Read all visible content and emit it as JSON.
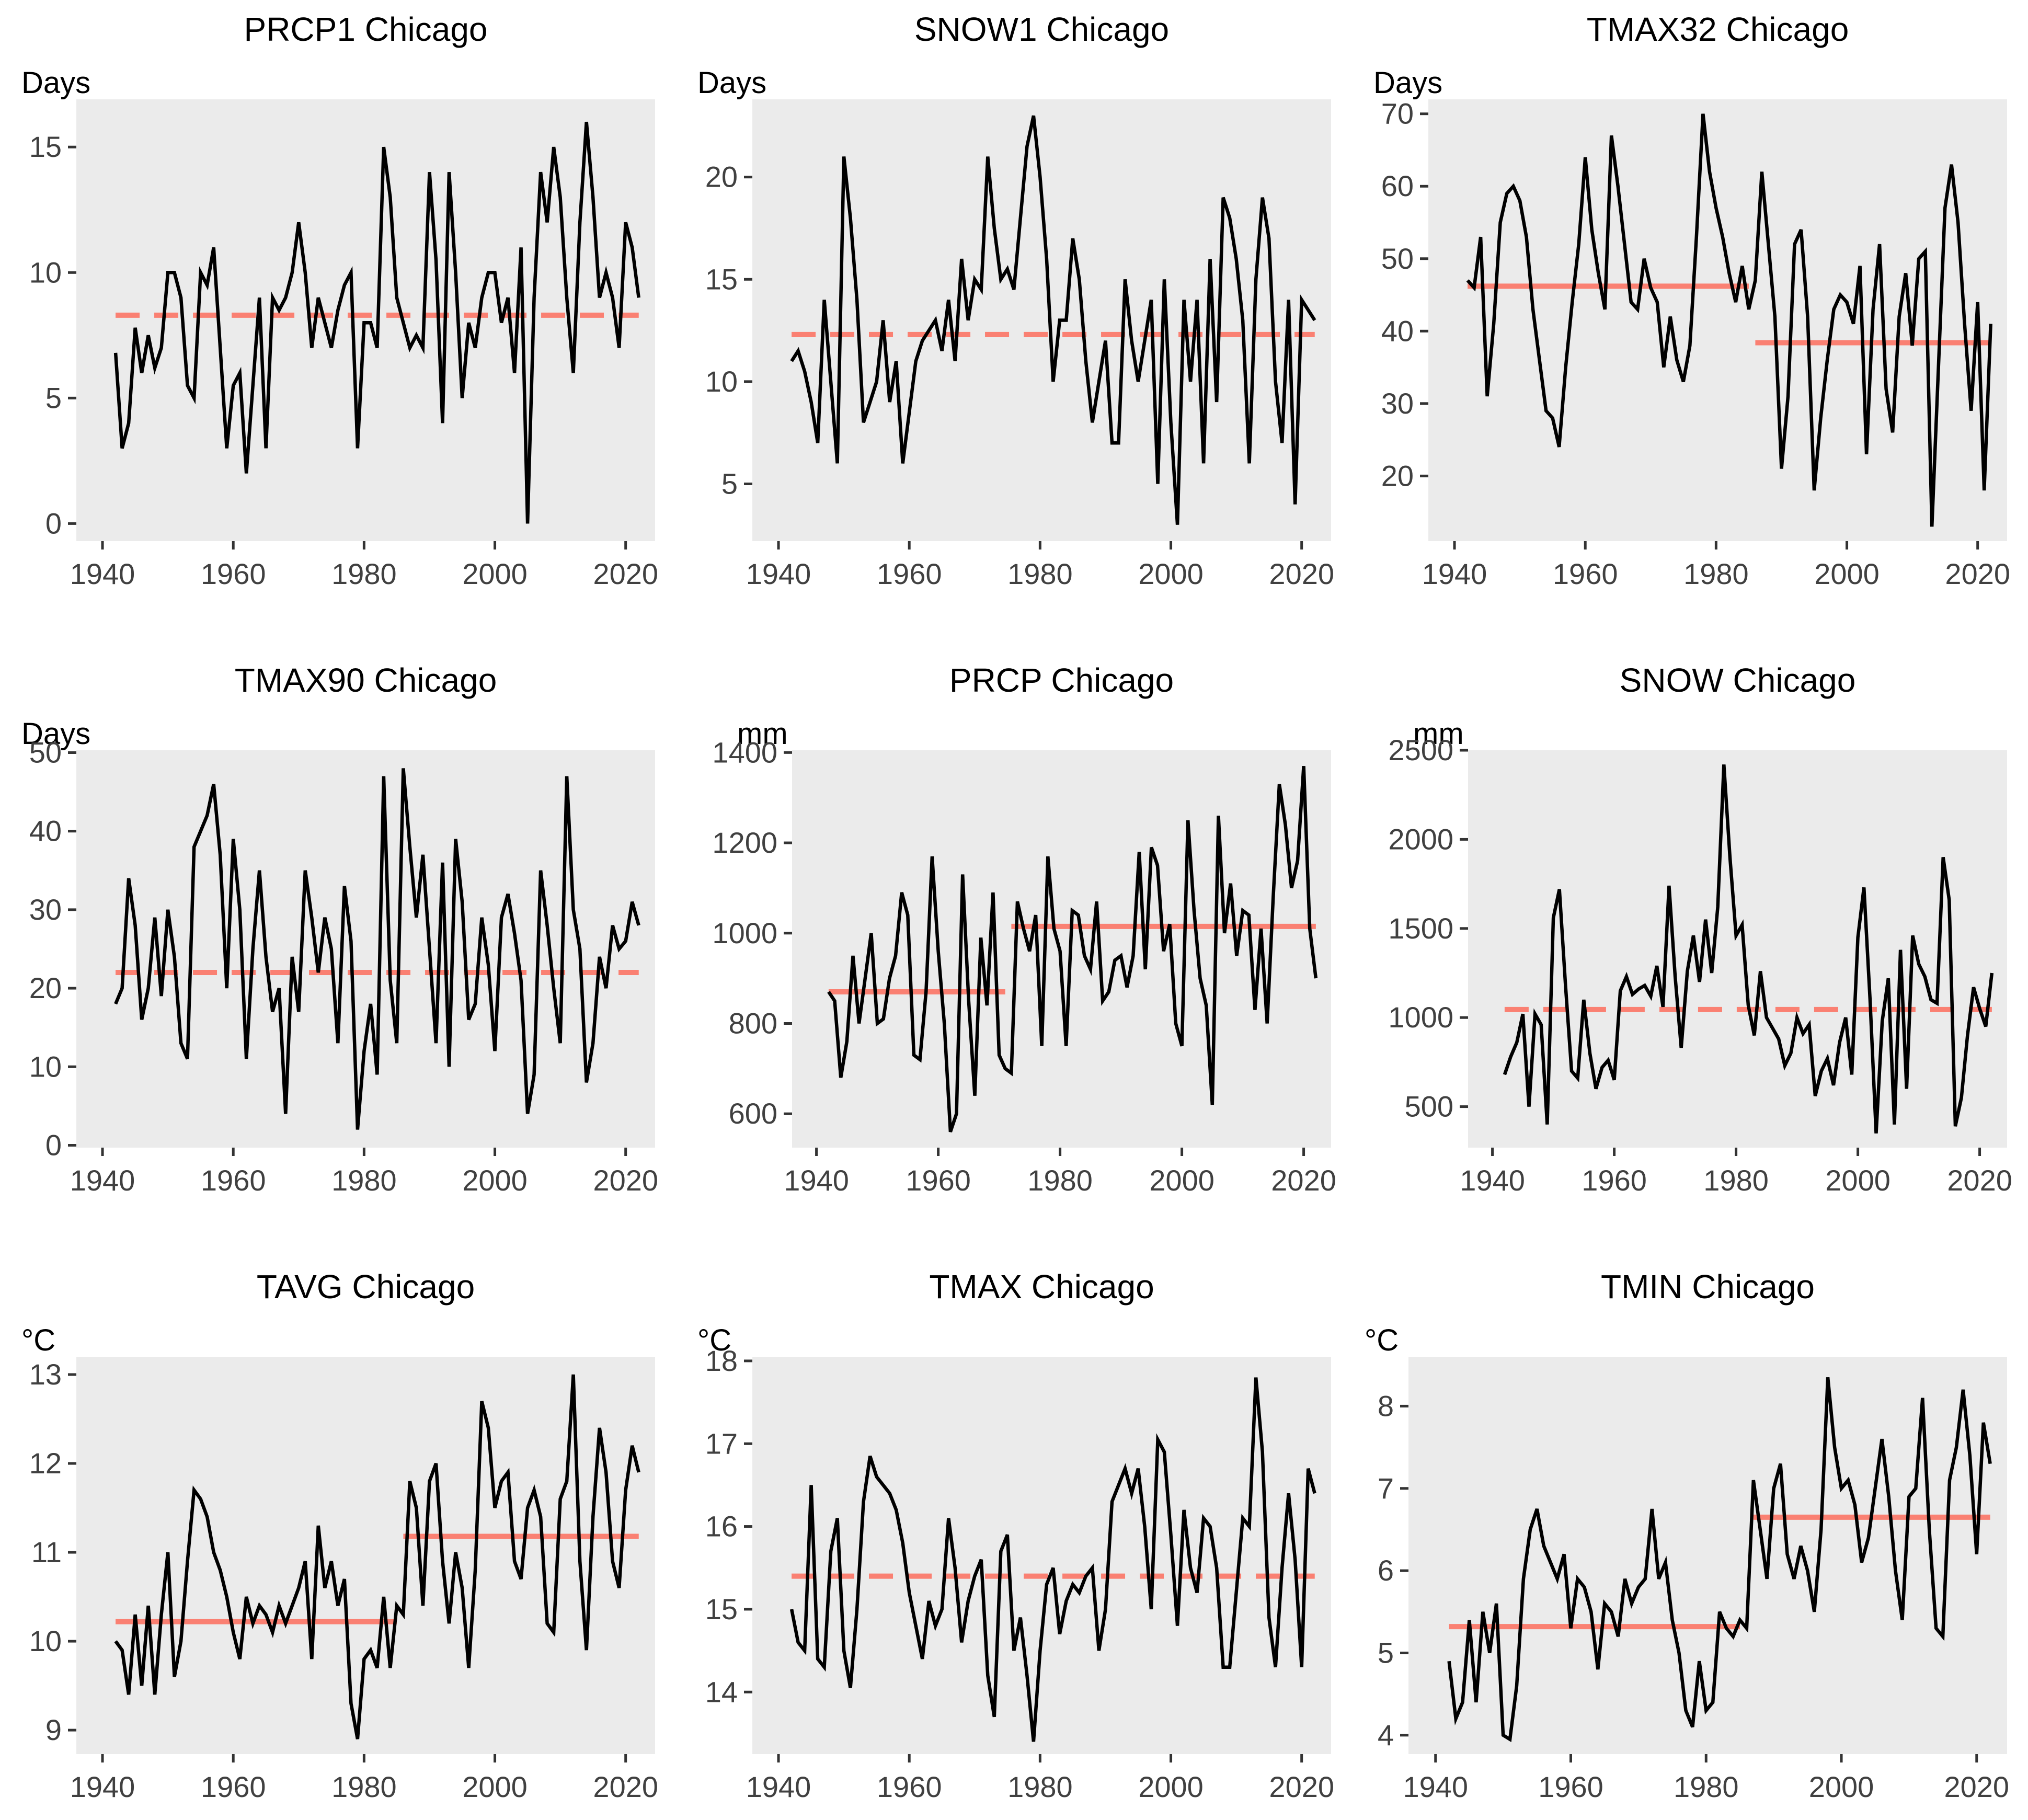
{
  "page": {
    "background": "#ffffff"
  },
  "styles": {
    "panel_bg": "#EBEBEB",
    "series_color": "#000000",
    "mean_line_color": "#FA8072",
    "tick_text_color": "#404040",
    "title_color": "#000000",
    "axis_tick_color": "#333333"
  },
  "x_axis": {
    "ticks": [
      1940,
      1960,
      1980,
      2000,
      2020
    ],
    "domain": [
      1936,
      2024.5
    ]
  },
  "years": {
    "start": 1942,
    "end": 2022
  },
  "chart_data": [
    {
      "id": "PRCP1",
      "type": "line",
      "title": "PRCP1 Chicago",
      "unit": "Days",
      "ylim": [
        -0.7,
        16.9
      ],
      "yticks": [
        0,
        5,
        10,
        15
      ],
      "mean_lines": [
        {
          "from": 1942,
          "to": 2022,
          "value": 8.3,
          "dashed": true
        }
      ],
      "values": [
        6.8,
        3,
        4,
        7.8,
        6,
        7.5,
        6.2,
        7,
        10,
        10,
        9,
        5.5,
        5,
        10,
        9.5,
        11,
        7,
        3,
        5.5,
        6,
        2,
        5.5,
        9,
        3,
        9,
        8.5,
        9,
        10,
        12,
        10,
        7,
        9,
        8,
        7,
        8.5,
        9.5,
        10,
        3,
        8,
        8,
        7,
        15,
        13,
        9,
        8,
        7,
        7.5,
        7,
        14,
        10.5,
        4,
        14,
        10,
        5,
        8,
        7,
        9,
        10,
        10,
        8,
        9,
        6,
        11,
        0,
        9,
        14,
        12,
        15,
        13,
        9,
        6,
        12,
        16,
        13,
        9,
        10,
        9,
        7,
        12,
        11,
        9
      ]
    },
    {
      "id": "SNOW1",
      "type": "line",
      "title": "SNOW1 Chicago",
      "unit": "Days",
      "ylim": [
        2.2,
        23.8
      ],
      "yticks": [
        5,
        10,
        15,
        20
      ],
      "mean_lines": [
        {
          "from": 1942,
          "to": 2022,
          "value": 12.3,
          "dashed": true
        }
      ],
      "values": [
        11,
        11.5,
        10.5,
        9,
        7,
        14,
        10,
        6,
        21,
        18,
        14,
        8,
        9,
        10,
        13,
        9,
        11,
        6,
        8.5,
        11,
        12,
        12.5,
        13,
        11.5,
        14,
        11,
        16,
        13,
        15,
        14.5,
        21,
        17.5,
        15,
        15.5,
        14.5,
        18,
        21.5,
        23,
        20,
        16,
        10,
        13,
        13,
        17,
        15,
        11,
        8,
        10,
        12,
        7,
        7,
        15,
        12,
        10,
        12,
        14,
        5,
        15,
        8,
        3,
        14,
        10,
        14,
        6,
        16,
        9,
        19,
        18,
        16,
        13,
        6,
        15,
        19,
        17,
        10,
        7,
        14,
        4,
        14,
        13.5,
        13
      ]
    },
    {
      "id": "TMAX32",
      "type": "line",
      "title": "TMAX32 Chicago",
      "unit": "Days",
      "ylim": [
        11,
        72
      ],
      "yticks": [
        20,
        30,
        40,
        50,
        60,
        70
      ],
      "mean_lines": [
        {
          "from": 1942,
          "to": 1985,
          "value": 46.2,
          "dashed": false
        },
        {
          "from": 1986,
          "to": 2022,
          "value": 38.4,
          "dashed": false
        }
      ],
      "values": [
        47,
        46,
        53,
        31,
        41,
        55,
        59,
        60,
        58,
        53,
        43,
        36,
        29,
        28,
        24,
        35,
        44,
        52,
        64,
        54,
        48,
        43,
        67,
        60,
        52,
        44,
        43,
        50,
        46,
        44,
        35,
        42,
        36,
        33,
        38,
        53,
        70,
        62,
        57,
        53,
        48,
        44,
        49,
        43,
        47,
        62,
        52,
        42,
        21,
        31,
        52,
        54,
        42,
        18,
        28,
        36,
        43,
        45,
        44,
        41,
        49,
        23,
        43,
        52,
        32,
        26,
        42,
        48,
        38,
        50,
        51,
        13,
        35,
        57,
        63,
        55,
        41,
        29,
        44,
        18,
        41
      ]
    },
    {
      "id": "TMAX90",
      "type": "line",
      "title": "TMAX90 Chicago",
      "unit": "Days",
      "ylim": [
        -0.3,
        50.3
      ],
      "yticks": [
        0,
        10,
        20,
        30,
        40,
        50
      ],
      "mean_lines": [
        {
          "from": 1942,
          "to": 2022,
          "value": 22,
          "dashed": true
        }
      ],
      "values": [
        18,
        20,
        34,
        28,
        16,
        20,
        29,
        19,
        30,
        24,
        13,
        11,
        38,
        40,
        42,
        46,
        37,
        20,
        39,
        30,
        11,
        25,
        35,
        24,
        17,
        20,
        4,
        24,
        17,
        35,
        29,
        22,
        29,
        25,
        13,
        33,
        26,
        2,
        12,
        18,
        9,
        47,
        21,
        13,
        48,
        38,
        29,
        37,
        25,
        13,
        36,
        10,
        39,
        31,
        16,
        18,
        29,
        23,
        12,
        29,
        32,
        27,
        21,
        4,
        9,
        35,
        28,
        20,
        13,
        47,
        30,
        25,
        8,
        13,
        24,
        20,
        28,
        25,
        26,
        31,
        28
      ]
    },
    {
      "id": "PRCP",
      "type": "line",
      "title": "PRCP Chicago",
      "unit": "mm",
      "ylim": [
        525,
        1405
      ],
      "yticks": [
        600,
        800,
        1000,
        1200,
        1400
      ],
      "mean_lines": [
        {
          "from": 1942,
          "to": 1971,
          "value": 870,
          "dashed": false
        },
        {
          "from": 1972,
          "to": 2022,
          "value": 1015,
          "dashed": false
        }
      ],
      "values": [
        870,
        850,
        680,
        760,
        950,
        800,
        900,
        1000,
        800,
        810,
        900,
        950,
        1090,
        1040,
        730,
        720,
        870,
        1170,
        960,
        800,
        560,
        600,
        1130,
        850,
        640,
        990,
        840,
        1090,
        730,
        700,
        690,
        1070,
        1010,
        960,
        1040,
        750,
        1170,
        1010,
        960,
        750,
        1050,
        1040,
        950,
        920,
        1070,
        850,
        870,
        940,
        950,
        880,
        950,
        1180,
        920,
        1190,
        1150,
        960,
        1020,
        800,
        750,
        1250,
        1050,
        900,
        840,
        620,
        1260,
        1000,
        1110,
        950,
        1050,
        1040,
        830,
        1010,
        800,
        1080,
        1330,
        1240,
        1100,
        1160,
        1370,
        1010,
        900
      ]
    },
    {
      "id": "SNOW",
      "type": "line",
      "title": "SNOW Chicago",
      "unit": "mm",
      "ylim": [
        270,
        2500
      ],
      "yticks": [
        500,
        1000,
        1500,
        2000,
        2500
      ],
      "mean_lines": [
        {
          "from": 1942,
          "to": 2022,
          "value": 1045,
          "dashed": true
        }
      ],
      "values": [
        680,
        780,
        860,
        1020,
        500,
        1020,
        960,
        400,
        1560,
        1720,
        1180,
        700,
        660,
        1100,
        800,
        600,
        720,
        760,
        650,
        1150,
        1230,
        1130,
        1160,
        1180,
        1120,
        1290,
        1060,
        1740,
        1230,
        830,
        1260,
        1460,
        1200,
        1550,
        1250,
        1620,
        2420,
        1900,
        1460,
        1520,
        1070,
        900,
        1260,
        1000,
        940,
        880,
        730,
        800,
        1000,
        910,
        960,
        560,
        700,
        770,
        620,
        860,
        1000,
        680,
        1450,
        1730,
        1100,
        350,
        980,
        1220,
        400,
        1380,
        600,
        1460,
        1300,
        1230,
        1100,
        1080,
        1900,
        1660,
        390,
        550,
        900,
        1170,
        1050,
        950,
        1250
      ]
    },
    {
      "id": "TAVG",
      "type": "line",
      "title": "TAVG Chicago",
      "unit": "°C",
      "ylim": [
        8.73,
        13.2
      ],
      "yticks": [
        9,
        10,
        11,
        12,
        13
      ],
      "mean_lines": [
        {
          "from": 1942,
          "to": 1985,
          "value": 10.22,
          "dashed": false
        },
        {
          "from": 1986,
          "to": 2022,
          "value": 11.18,
          "dashed": false
        }
      ],
      "values": [
        10,
        9.9,
        9.4,
        10.3,
        9.5,
        10.4,
        9.4,
        10.3,
        11,
        9.6,
        10,
        10.9,
        11.7,
        11.6,
        11.4,
        11,
        10.8,
        10.5,
        10.1,
        9.8,
        10.5,
        10.2,
        10.4,
        10.3,
        10.1,
        10.4,
        10.2,
        10.4,
        10.6,
        10.9,
        9.8,
        11.3,
        10.6,
        10.9,
        10.4,
        10.7,
        9.3,
        8.9,
        9.8,
        9.9,
        9.7,
        10.5,
        9.7,
        10.4,
        10.3,
        11.8,
        11.5,
        10.4,
        11.8,
        12,
        10.9,
        10.2,
        11,
        10.6,
        9.7,
        10.8,
        12.7,
        12.4,
        11.5,
        11.8,
        11.9,
        10.9,
        10.7,
        11.5,
        11.7,
        11.4,
        10.2,
        10.1,
        11.6,
        11.8,
        13,
        10.9,
        9.9,
        11.4,
        12.4,
        11.9,
        10.9,
        10.6,
        11.7,
        12.2,
        11.9
      ]
    },
    {
      "id": "TMAX",
      "type": "line",
      "title": "TMAX Chicago",
      "unit": "°C",
      "ylim": [
        13.25,
        18.05
      ],
      "yticks": [
        14,
        15,
        16,
        17,
        18
      ],
      "mean_lines": [
        {
          "from": 1942,
          "to": 2022,
          "value": 15.4,
          "dashed": true
        }
      ],
      "values": [
        15,
        14.6,
        14.5,
        16.5,
        14.4,
        14.3,
        15.7,
        16.1,
        14.5,
        14.05,
        15,
        16.3,
        16.85,
        16.6,
        16.5,
        16.4,
        16.2,
        15.8,
        15.2,
        14.8,
        14.4,
        15.1,
        14.8,
        15,
        16.1,
        15.5,
        14.6,
        15.1,
        15.4,
        15.6,
        14.2,
        13.7,
        15.7,
        15.9,
        14.5,
        14.9,
        14.2,
        13.4,
        14.5,
        15.3,
        15.5,
        14.7,
        15.1,
        15.3,
        15.2,
        15.4,
        15.5,
        14.5,
        15,
        16.3,
        16.5,
        16.7,
        16.4,
        16.7,
        16,
        15,
        17.05,
        16.9,
        15.9,
        14.8,
        16.2,
        15.5,
        15.2,
        16.1,
        16,
        15.5,
        14.3,
        14.3,
        15.2,
        16.1,
        16,
        17.8,
        16.9,
        14.9,
        14.3,
        15.5,
        16.4,
        15.6,
        14.3,
        16.7,
        16.4
      ]
    },
    {
      "id": "TMIN",
      "type": "line",
      "title": "TMIN Chicago",
      "unit": "°C",
      "ylim": [
        3.77,
        8.6
      ],
      "yticks": [
        4,
        5,
        6,
        7,
        8
      ],
      "mean_lines": [
        {
          "from": 1942,
          "to": 1985,
          "value": 5.32,
          "dashed": false
        },
        {
          "from": 1987,
          "to": 2022,
          "value": 6.65,
          "dashed": false
        }
      ],
      "values": [
        4.9,
        4.2,
        4.4,
        5.4,
        4.4,
        5.5,
        5,
        5.6,
        4,
        3.95,
        4.6,
        5.9,
        6.5,
        6.75,
        6.3,
        6.1,
        5.9,
        6.2,
        5.3,
        5.9,
        5.8,
        5.5,
        4.8,
        5.6,
        5.5,
        5.2,
        5.9,
        5.6,
        5.8,
        5.9,
        6.75,
        5.9,
        6.1,
        5.4,
        5,
        4.3,
        4.1,
        4.9,
        4.3,
        4.4,
        5.5,
        5.3,
        5.2,
        5.4,
        5.3,
        7.1,
        6.5,
        5.9,
        7,
        7.3,
        6.2,
        5.9,
        6.3,
        6,
        5.5,
        6.5,
        8.35,
        7.5,
        7,
        7.1,
        6.8,
        6.1,
        6.4,
        7,
        7.6,
        6.9,
        6,
        5.4,
        6.9,
        7,
        8.1,
        6.5,
        5.3,
        5.2,
        7.1,
        7.5,
        8.2,
        7.4,
        6.2,
        7.8,
        7.3
      ]
    }
  ]
}
